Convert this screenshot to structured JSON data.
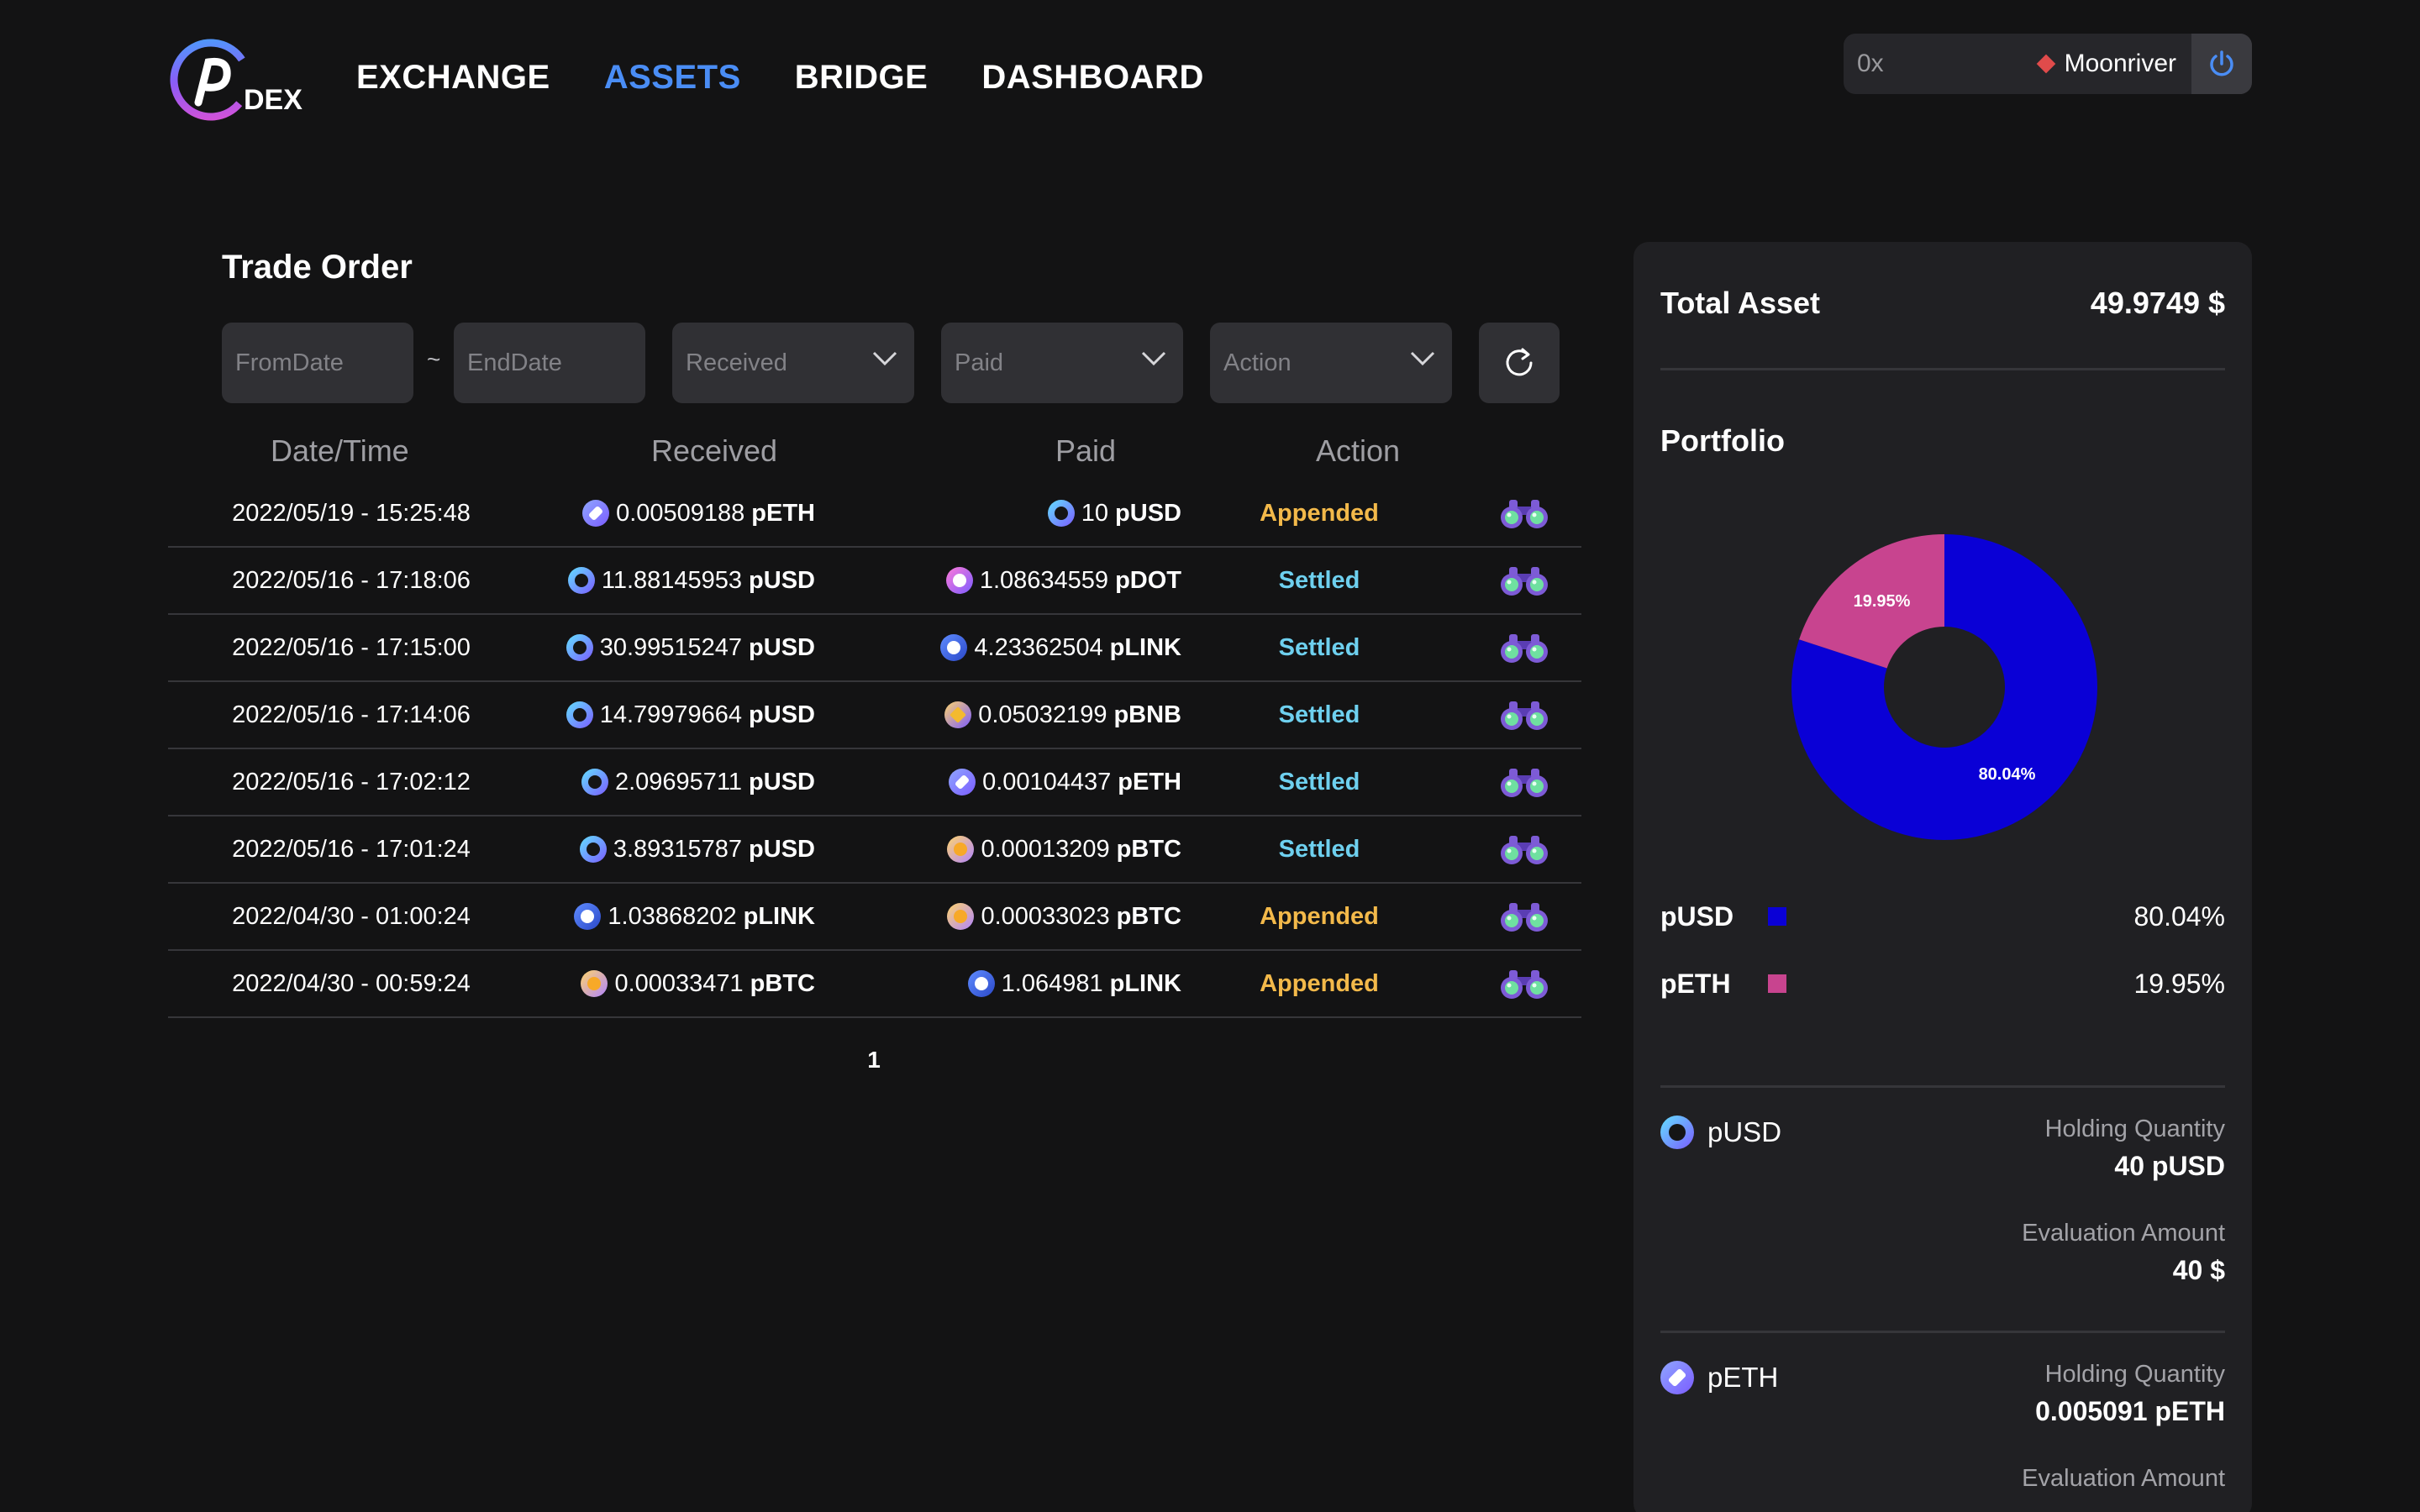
{
  "header": {
    "logo_text": "DEX",
    "nav": [
      {
        "label": "EXCHANGE",
        "active": false
      },
      {
        "label": "ASSETS",
        "active": true
      },
      {
        "label": "BRIDGE",
        "active": false
      },
      {
        "label": "DASHBOARD",
        "active": false
      }
    ],
    "wallet": {
      "address": "0x",
      "network": "Moonriver",
      "network_color": "#e04b4b",
      "power_icon": "power-icon"
    }
  },
  "trade_order": {
    "title": "Trade Order",
    "filters": {
      "from_date_placeholder": "FromDate",
      "separator": "~",
      "end_date_placeholder": "EndDate",
      "received": "Received",
      "paid": "Paid",
      "action": "Action",
      "refresh_icon": "refresh-icon"
    },
    "columns": {
      "date": "Date/Time",
      "received": "Received",
      "paid": "Paid",
      "action": "Action"
    },
    "rows": [
      {
        "date": "2022/05/19 - 15:25:48",
        "recv_amount": "0.00509188",
        "recv_token": "pETH",
        "paid_amount": "10",
        "paid_token": "pUSD",
        "action": "Appended"
      },
      {
        "date": "2022/05/16 - 17:18:06",
        "recv_amount": "11.88145953",
        "recv_token": "pUSD",
        "paid_amount": "1.08634559",
        "paid_token": "pDOT",
        "action": "Settled"
      },
      {
        "date": "2022/05/16 - 17:15:00",
        "recv_amount": "30.99515247",
        "recv_token": "pUSD",
        "paid_amount": "4.23362504",
        "paid_token": "pLINK",
        "action": "Settled"
      },
      {
        "date": "2022/05/16 - 17:14:06",
        "recv_amount": "14.79979664",
        "recv_token": "pUSD",
        "paid_amount": "0.05032199",
        "paid_token": "pBNB",
        "action": "Settled"
      },
      {
        "date": "2022/05/16 - 17:02:12",
        "recv_amount": "2.09695711",
        "recv_token": "pUSD",
        "paid_amount": "0.00104437",
        "paid_token": "pETH",
        "action": "Settled"
      },
      {
        "date": "2022/05/16 - 17:01:24",
        "recv_amount": "3.89315787",
        "recv_token": "pUSD",
        "paid_amount": "0.00013209",
        "paid_token": "pBTC",
        "action": "Settled"
      },
      {
        "date": "2022/04/30 - 01:00:24",
        "recv_amount": "1.03868202",
        "recv_token": "pLINK",
        "paid_amount": "0.00033023",
        "paid_token": "pBTC",
        "action": "Appended"
      },
      {
        "date": "2022/04/30 - 00:59:24",
        "recv_amount": "0.00033471",
        "recv_token": "pBTC",
        "paid_amount": "1.064981",
        "paid_token": "pLINK",
        "action": "Appended"
      }
    ],
    "view_icon": "binoculars-icon",
    "pagination": {
      "current": "1"
    }
  },
  "assets": {
    "total_label": "Total Asset",
    "total_value": "49.9749 $",
    "portfolio_title": "Portfolio",
    "chart_data": {
      "type": "pie",
      "categories": [
        "pUSD",
        "pETH"
      ],
      "values": [
        80.04,
        19.95
      ],
      "labels": [
        "80.04%",
        "19.95%"
      ],
      "colors": [
        "#0a00d6",
        "#c8448f"
      ]
    },
    "legend": [
      {
        "name": "pUSD",
        "color": "#0a00d6",
        "pct": "80.04%"
      },
      {
        "name": "pETH",
        "color": "#c8448f",
        "pct": "19.95%"
      }
    ],
    "holdings": [
      {
        "token": "pUSD",
        "qty_label": "Holding Quantity",
        "qty": "40 pUSD",
        "eval_label": "Evaluation Amount",
        "eval": "40 $"
      },
      {
        "token": "pETH",
        "qty_label": "Holding Quantity",
        "qty": "0.005091 pETH",
        "eval_label": "Evaluation Amount",
        "eval": ""
      }
    ]
  }
}
